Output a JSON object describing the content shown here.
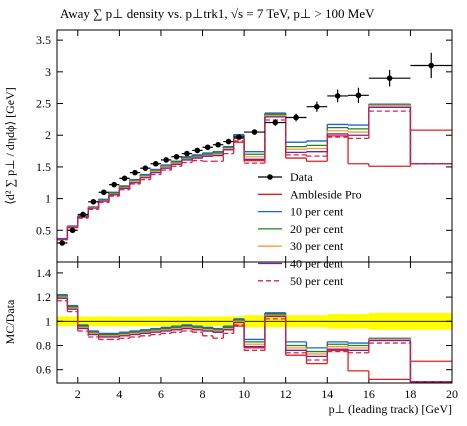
{
  "chart_data": [
    {
      "type": "histogram",
      "title": "Away ∑ p⊥ density vs. p⊥trk1, √s = 7 TeV, p⊥ > 100 MeV",
      "ylabel": "⟨d² ∑ p⊥ / dηdϕ⟩ [GeV]",
      "bins": [
        1,
        1.5,
        2,
        2.5,
        3,
        3.5,
        4,
        4.5,
        5,
        5.5,
        6,
        6.5,
        7,
        7.5,
        8,
        8.5,
        9,
        9.5,
        10,
        11,
        12,
        13,
        14,
        15,
        16,
        18,
        20
      ],
      "xlim": [
        1,
        20
      ],
      "ylim": [
        0,
        3.66
      ],
      "yticks": [
        0.5,
        1,
        1.5,
        2,
        2.5,
        3,
        3.5
      ],
      "data": {
        "name": "Data",
        "color": "#000000",
        "values": [
          0.3,
          0.5,
          0.75,
          0.95,
          1.1,
          1.22,
          1.32,
          1.41,
          1.48,
          1.55,
          1.61,
          1.66,
          1.71,
          1.76,
          1.81,
          1.85,
          1.9,
          1.97,
          2.05,
          2.2,
          2.28,
          2.45,
          2.62,
          2.63,
          2.9,
          3.1
        ],
        "errors": [
          0.01,
          0.01,
          0.01,
          0.01,
          0.01,
          0.01,
          0.01,
          0.01,
          0.01,
          0.01,
          0.01,
          0.01,
          0.02,
          0.02,
          0.02,
          0.02,
          0.03,
          0.03,
          0.04,
          0.05,
          0.06,
          0.08,
          0.1,
          0.12,
          0.13,
          0.2
        ]
      },
      "series": [
        {
          "name": "Ambleside Pro",
          "color": "#e02020",
          "dash": false,
          "values": [
            0.36,
            0.56,
            0.71,
            0.86,
            0.97,
            1.07,
            1.17,
            1.27,
            1.35,
            1.43,
            1.5,
            1.54,
            1.61,
            1.64,
            1.67,
            1.68,
            1.77,
            1.89,
            1.6,
            2.31,
            1.64,
            1.59,
            1.99,
            1.55,
            1.51,
            2.08
          ]
        },
        {
          "name": "10 per cent",
          "color": "#2060d0",
          "dash": false,
          "values": [
            0.37,
            0.57,
            0.73,
            0.87,
            0.99,
            1.1,
            1.2,
            1.3,
            1.38,
            1.46,
            1.53,
            1.59,
            1.66,
            1.69,
            1.72,
            1.74,
            1.82,
            2.01,
            1.74,
            2.35,
            1.89,
            1.91,
            2.17,
            2.16,
            2.49,
            1.55
          ]
        },
        {
          "name": "20 per cent",
          "color": "#208020",
          "dash": false,
          "values": [
            0.36,
            0.56,
            0.72,
            0.86,
            0.98,
            1.09,
            1.19,
            1.28,
            1.36,
            1.44,
            1.51,
            1.58,
            1.64,
            1.67,
            1.7,
            1.72,
            1.81,
            1.99,
            1.7,
            2.33,
            1.82,
            1.84,
            2.12,
            2.1,
            2.47,
            1.55
          ]
        },
        {
          "name": "30 per cent",
          "color": "#f0a030",
          "dash": false,
          "values": [
            0.36,
            0.56,
            0.71,
            0.86,
            0.97,
            1.07,
            1.17,
            1.27,
            1.35,
            1.43,
            1.5,
            1.56,
            1.62,
            1.65,
            1.68,
            1.7,
            1.79,
            1.97,
            1.66,
            2.31,
            1.78,
            1.79,
            2.07,
            2.05,
            2.47,
            1.55
          ]
        },
        {
          "name": "40 per cent",
          "color": "#7a2090",
          "dash": false,
          "values": [
            0.36,
            0.55,
            0.71,
            0.85,
            0.96,
            1.06,
            1.16,
            1.25,
            1.33,
            1.41,
            1.48,
            1.54,
            1.61,
            1.64,
            1.67,
            1.68,
            1.77,
            1.95,
            1.62,
            2.29,
            1.73,
            1.74,
            2.02,
            2.0,
            2.44,
            1.55
          ]
        },
        {
          "name": "50 per cent",
          "color": "#e02040",
          "dash": true,
          "values": [
            0.35,
            0.54,
            0.69,
            0.83,
            0.94,
            1.04,
            1.14,
            1.23,
            1.3,
            1.38,
            1.45,
            1.51,
            1.57,
            1.6,
            1.59,
            1.59,
            1.71,
            1.91,
            1.56,
            2.24,
            1.69,
            1.67,
            1.97,
            1.95,
            2.38,
            1.55
          ]
        }
      ]
    },
    {
      "type": "ratio",
      "ylabel": "MC/Data",
      "xlabel": "p⊥ (leading track) [GeV]",
      "xlim": [
        1,
        20
      ],
      "xticks": [
        2,
        4,
        6,
        8,
        10,
        12,
        14,
        16,
        18,
        20
      ],
      "ylim": [
        0.49,
        1.49
      ],
      "yticks": [
        1.4,
        1.2,
        1,
        0.8,
        0.6
      ],
      "band_color": "#ffff00",
      "band_errors": [
        0.04,
        0.04,
        0.04,
        0.04,
        0.04,
        0.04,
        0.04,
        0.04,
        0.04,
        0.04,
        0.04,
        0.04,
        0.04,
        0.04,
        0.04,
        0.04,
        0.04,
        0.04,
        0.05,
        0.05,
        0.05,
        0.05,
        0.06,
        0.06,
        0.07,
        0.07
      ],
      "series": [
        {
          "color": "#e02020",
          "dash": false,
          "values": [
            1.2,
            1.12,
            0.95,
            0.9,
            0.88,
            0.88,
            0.89,
            0.9,
            0.91,
            0.92,
            0.93,
            0.93,
            0.94,
            0.93,
            0.92,
            0.91,
            0.93,
            0.96,
            0.78,
            1.05,
            0.72,
            0.65,
            0.76,
            0.59,
            0.52,
            0.67
          ]
        },
        {
          "color": "#2060d0",
          "dash": false,
          "values": [
            1.22,
            1.13,
            0.97,
            0.92,
            0.9,
            0.9,
            0.91,
            0.92,
            0.93,
            0.94,
            0.95,
            0.96,
            0.97,
            0.96,
            0.95,
            0.94,
            0.96,
            1.02,
            0.85,
            1.07,
            0.83,
            0.78,
            0.83,
            0.82,
            0.86,
            0.5
          ]
        },
        {
          "color": "#208020",
          "dash": false,
          "values": [
            1.21,
            1.12,
            0.96,
            0.91,
            0.89,
            0.89,
            0.9,
            0.91,
            0.92,
            0.93,
            0.94,
            0.95,
            0.96,
            0.95,
            0.94,
            0.93,
            0.95,
            1.01,
            0.83,
            1.06,
            0.8,
            0.75,
            0.81,
            0.8,
            0.85,
            0.5
          ]
        },
        {
          "color": "#f0a030",
          "dash": false,
          "values": [
            1.2,
            1.11,
            0.95,
            0.9,
            0.88,
            0.88,
            0.89,
            0.9,
            0.91,
            0.92,
            0.93,
            0.94,
            0.95,
            0.94,
            0.93,
            0.92,
            0.94,
            1.0,
            0.81,
            1.05,
            0.78,
            0.73,
            0.79,
            0.78,
            0.85,
            0.5
          ]
        },
        {
          "color": "#7a2090",
          "dash": false,
          "values": [
            1.19,
            1.1,
            0.94,
            0.89,
            0.87,
            0.87,
            0.88,
            0.89,
            0.9,
            0.91,
            0.92,
            0.93,
            0.94,
            0.93,
            0.92,
            0.91,
            0.93,
            0.99,
            0.79,
            1.04,
            0.76,
            0.71,
            0.77,
            0.76,
            0.84,
            0.5
          ]
        },
        {
          "color": "#e02040",
          "dash": true,
          "values": [
            1.17,
            1.08,
            0.92,
            0.87,
            0.85,
            0.85,
            0.86,
            0.87,
            0.88,
            0.89,
            0.9,
            0.91,
            0.92,
            0.91,
            0.88,
            0.86,
            0.9,
            0.97,
            0.76,
            1.02,
            0.74,
            0.68,
            0.75,
            0.74,
            0.82,
            0.5
          ]
        }
      ]
    }
  ]
}
